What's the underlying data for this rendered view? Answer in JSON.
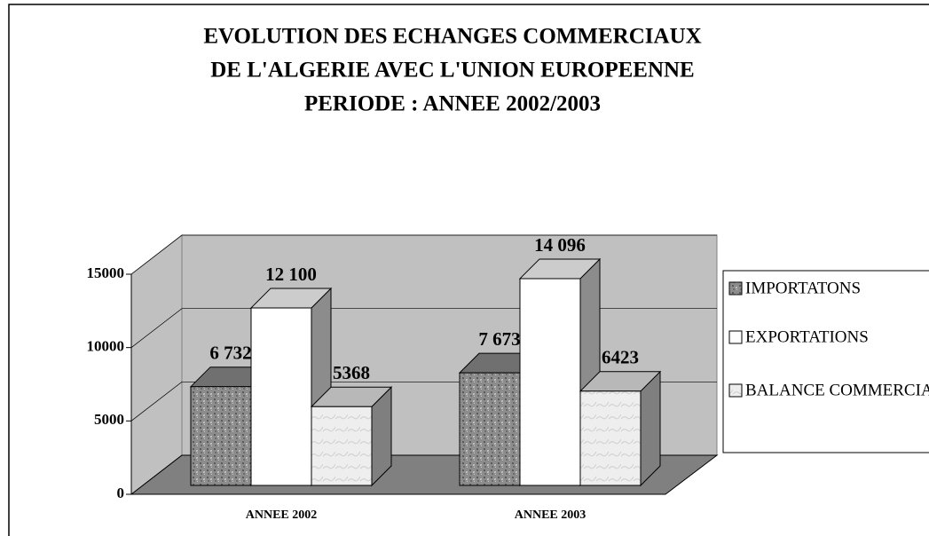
{
  "chart_data": {
    "type": "bar3d",
    "title": [
      "EVOLUTION DES ECHANGES COMMERCIAUX",
      "DE L'ALGERIE AVEC L'UNION EUROPEENNE",
      "PERIODE : ANNEE 2002/2003"
    ],
    "categories": [
      "ANNEE 2002",
      "ANNEE 2003"
    ],
    "series": [
      {
        "name": "IMPORTATONS",
        "color": "#8c8c8c",
        "values": [
          6732,
          7673
        ],
        "value_labels": [
          "6 732",
          "7 673"
        ]
      },
      {
        "name": "EXPORTATIONS",
        "color": "#ffffff",
        "values": [
          12100,
          14096
        ],
        "value_labels": [
          "12 100",
          "14 096"
        ]
      },
      {
        "name": "BALANCE COMMERCIALE",
        "color": "#e6e6e6",
        "values": [
          5368,
          6423
        ],
        "value_labels": [
          "5368",
          "6423"
        ]
      }
    ],
    "ylim": [
      0,
      15000
    ],
    "yticks": [
      0,
      5000,
      10000,
      15000
    ],
    "grid": true
  }
}
